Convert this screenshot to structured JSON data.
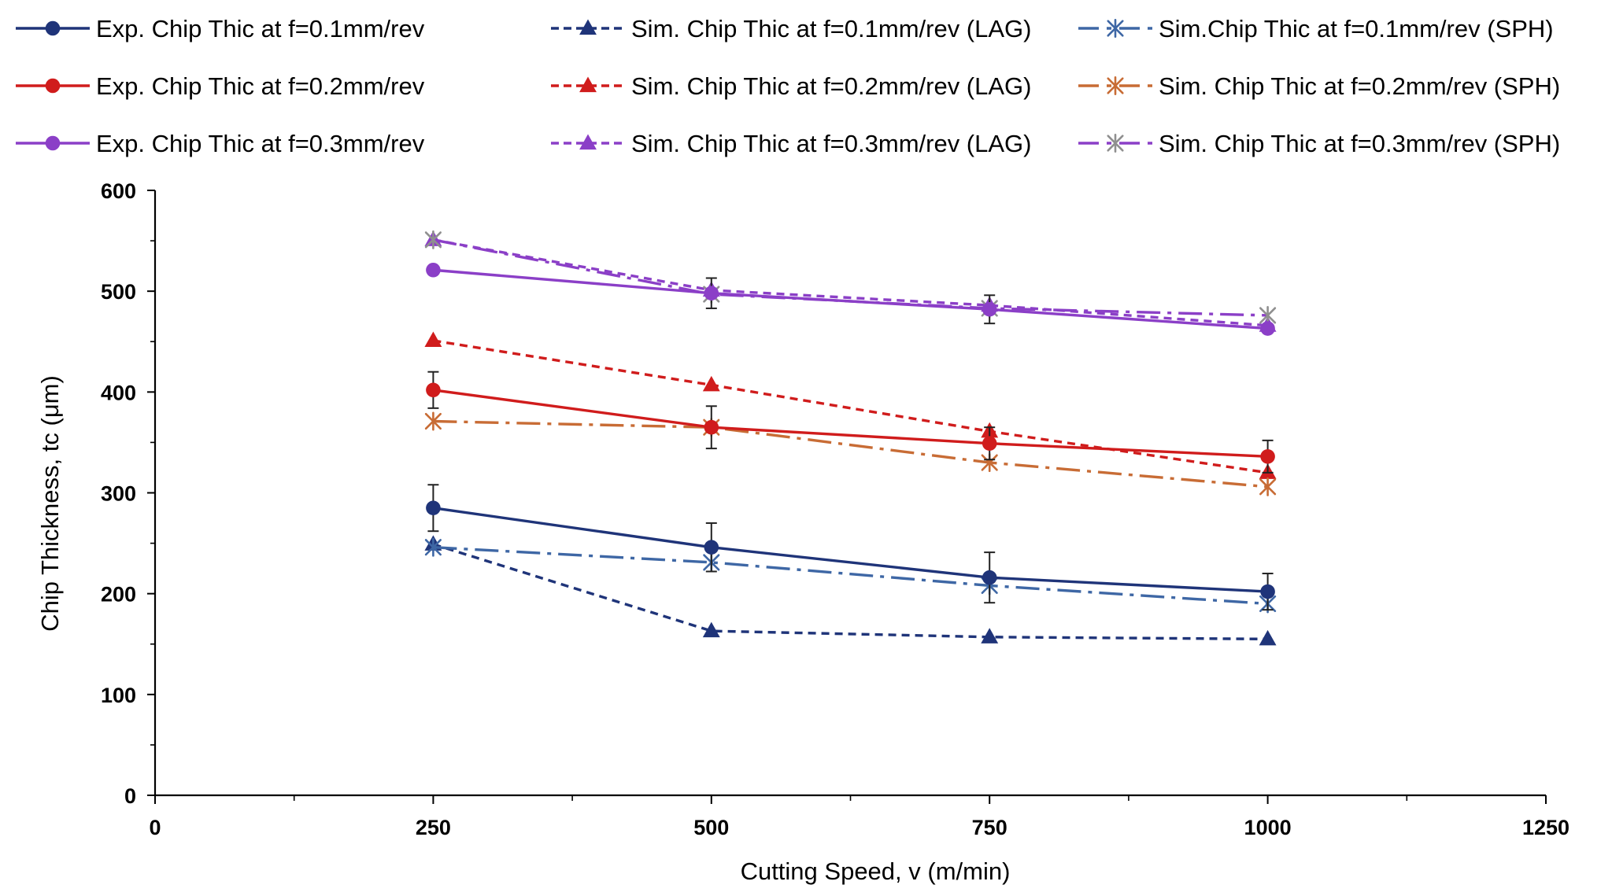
{
  "chart_data": {
    "type": "line",
    "xlabel": "Cutting Speed, v (m/min)",
    "ylabel": "Chip Thickness, tc (μm)",
    "xlim": [
      0,
      1250
    ],
    "ylim": [
      0,
      600
    ],
    "x_ticks": [
      0,
      250,
      500,
      750,
      1000,
      1250
    ],
    "y_ticks": [
      0,
      100,
      200,
      300,
      400,
      500,
      600
    ],
    "grid": false,
    "legend_position": "top",
    "x": [
      250,
      500,
      750,
      1000
    ],
    "series": [
      {
        "name": "Exp. Chip Thic at f=0.1mm/rev",
        "color": "#1f3479",
        "line_style": "solid",
        "marker": "circle",
        "values": [
          285,
          246,
          216,
          202
        ],
        "error_bars": [
          23,
          24,
          25,
          18
        ]
      },
      {
        "name": "Sim. Chip Thic at f=0.1mm/rev (LAG)",
        "color": "#1f3479",
        "line_style": "dashed",
        "marker": "triangle",
        "values": [
          249,
          163,
          157,
          155
        ]
      },
      {
        "name": "Sim.Chip Thic at f=0.1mm/rev (SPH)",
        "color": "#3e67a5",
        "line_style": "dashdot",
        "marker": "star",
        "values": [
          246,
          231,
          208,
          190
        ]
      },
      {
        "name": "Exp. Chip Thic at f=0.2mm/rev",
        "color": "#d01c1c",
        "line_style": "solid",
        "marker": "circle",
        "values": [
          402,
          365,
          349,
          336
        ],
        "error_bars": [
          18,
          21,
          16,
          16
        ]
      },
      {
        "name": "Sim. Chip Thic at f=0.2mm/rev (LAG)",
        "color": "#d01c1c",
        "line_style": "dashed",
        "marker": "triangle",
        "values": [
          451,
          407,
          361,
          320
        ]
      },
      {
        "name": "Sim. Chip Thic at f=0.2mm/rev (SPH)",
        "color": "#c86c35",
        "line_style": "dashdot",
        "marker": "star",
        "values": [
          371,
          365,
          330,
          306
        ]
      },
      {
        "name": "Exp. Chip Thic at f=0.3mm/rev",
        "color": "#8b3fc7",
        "line_style": "solid",
        "marker": "circle",
        "values": [
          521,
          498,
          482,
          463
        ],
        "error_bars": [
          0,
          15,
          14,
          0
        ]
      },
      {
        "name": "Sim. Chip Thic at f=0.3mm/rev (LAG)",
        "color": "#8b3fc7",
        "line_style": "dashed",
        "marker": "triangle",
        "values": [
          551,
          501,
          486,
          466
        ]
      },
      {
        "name": "Sim. Chip Thic at f=0.3mm/rev (SPH)",
        "color": "#8f8f8f",
        "line_color": "#8b3fc7",
        "line_style": "dashdot",
        "marker": "star",
        "values": [
          551,
          497,
          483,
          476
        ]
      }
    ]
  }
}
